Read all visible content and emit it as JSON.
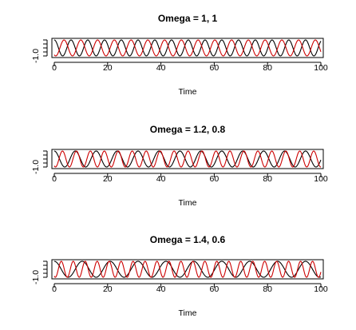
{
  "chart_data": [
    {
      "type": "line",
      "title": "Omega = 1, 1",
      "xlabel": "Time",
      "ylabel": "",
      "xlim": [
        0,
        100
      ],
      "ylim": [
        -1,
        1
      ],
      "xticks": [
        0,
        20,
        40,
        60,
        80,
        100
      ],
      "yticks": [
        -1.0
      ],
      "ytick_labels": [
        "-1.0"
      ],
      "grid": false,
      "series": [
        {
          "color": "#000000",
          "omega": 1.0,
          "phase": 0.0,
          "x_range": [
            0,
            100
          ]
        },
        {
          "color": "#cc0000",
          "omega": 1.0,
          "phase": 2.6,
          "x_range": [
            0,
            100
          ]
        }
      ]
    },
    {
      "type": "line",
      "title": "Omega = 1.2, 0.8",
      "xlabel": "Time",
      "ylabel": "",
      "xlim": [
        0,
        100
      ],
      "ylim": [
        -1,
        1
      ],
      "xticks": [
        0,
        20,
        40,
        60,
        80,
        100
      ],
      "yticks": [
        -1.0
      ],
      "ytick_labels": [
        "-1.0"
      ],
      "grid": false,
      "series": [
        {
          "color": "#000000",
          "omega": 0.8,
          "phase": 0.0,
          "x_range": [
            0,
            100
          ]
        },
        {
          "color": "#cc0000",
          "omega": 1.2,
          "phase": 2.6,
          "x_range": [
            0,
            100
          ]
        }
      ]
    },
    {
      "type": "line",
      "title": "Omega = 1.4, 0.6",
      "xlabel": "Time",
      "ylabel": "",
      "xlim": [
        0,
        100
      ],
      "ylim": [
        -1,
        1
      ],
      "xticks": [
        0,
        20,
        40,
        60,
        80,
        100
      ],
      "yticks": [
        -1.0
      ],
      "ytick_labels": [
        "-1.0"
      ],
      "grid": false,
      "series": [
        {
          "color": "#000000",
          "omega": 0.6,
          "phase": 0.0,
          "x_range": [
            0,
            100
          ]
        },
        {
          "color": "#cc0000",
          "omega": 1.4,
          "phase": 2.6,
          "x_range": [
            0,
            100
          ]
        }
      ]
    }
  ]
}
